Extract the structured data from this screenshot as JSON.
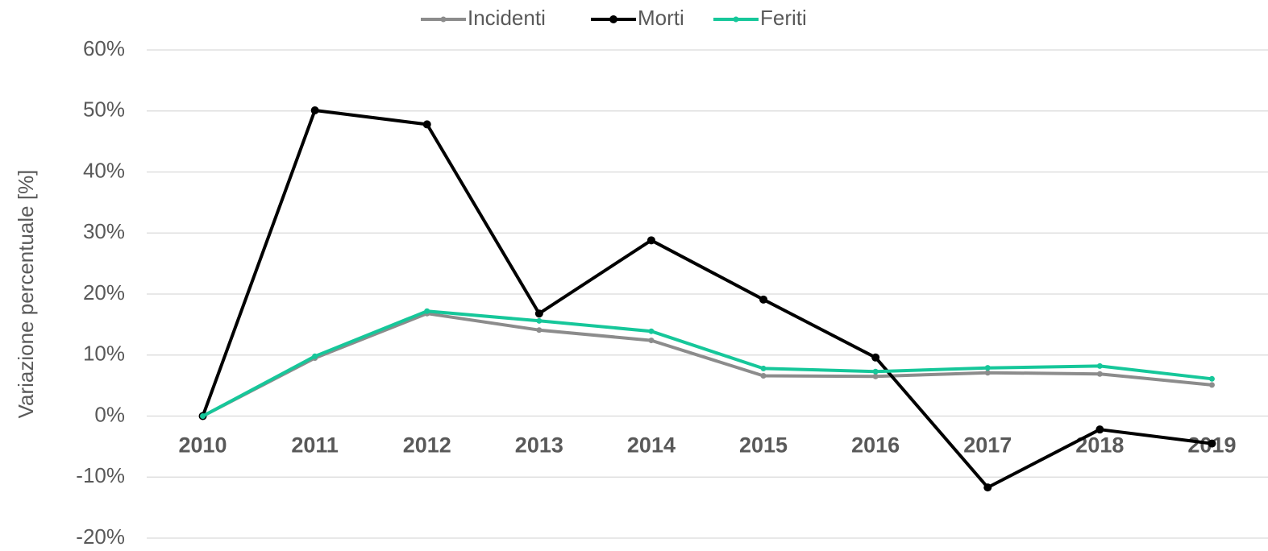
{
  "chart_data": {
    "type": "line",
    "y_label": "Variazione percentuale [%]",
    "categories": [
      "2010",
      "2011",
      "2012",
      "2013",
      "2014",
      "2015",
      "2016",
      "2017",
      "2018",
      "2019"
    ],
    "series": [
      {
        "name": "Incidenti",
        "color": "#8c8c8c",
        "values": [
          0,
          9.5,
          16.8,
          14.1,
          12.4,
          6.6,
          6.5,
          7.1,
          6.9,
          5.1
        ]
      },
      {
        "name": "Morti",
        "color": "#000000",
        "values": [
          0,
          50.1,
          47.8,
          16.8,
          28.8,
          19.1,
          9.6,
          -11.7,
          -2.2,
          -4.5
        ]
      },
      {
        "name": "Feriti",
        "color": "#16c79a",
        "values": [
          0,
          9.8,
          17.2,
          15.6,
          13.9,
          7.8,
          7.3,
          7.9,
          8.2,
          6.1
        ]
      }
    ],
    "ylim": [
      -20,
      60
    ],
    "yticks": [
      {
        "value": -20,
        "label": "-20%"
      },
      {
        "value": -10,
        "label": "-10%"
      },
      {
        "value": 0,
        "label": "0%"
      },
      {
        "value": 10,
        "label": "10%"
      },
      {
        "value": 20,
        "label": "20%"
      },
      {
        "value": 30,
        "label": "30%"
      },
      {
        "value": 40,
        "label": "40%"
      },
      {
        "value": 50,
        "label": "50%"
      },
      {
        "value": 60,
        "label": "60%"
      }
    ],
    "grid": true,
    "legend": "top"
  }
}
